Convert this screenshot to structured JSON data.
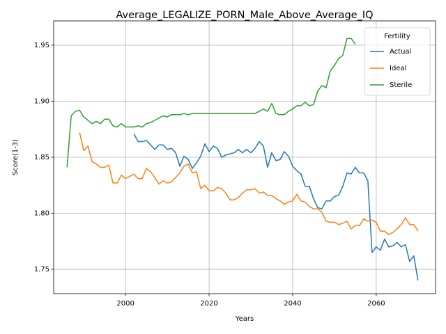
{
  "chart_data": {
    "type": "line",
    "title": "Average_LEGALIZE_PORN_Male_Above_Average_IQ",
    "xlabel": "Years",
    "ylabel": "Score(1-3)",
    "legend_title": "Fertility",
    "legend": "upper right",
    "grid": true,
    "xlim": [
      1982.8,
      2074.2
    ],
    "xticks": [
      2000,
      2020,
      2040,
      2060
    ],
    "ylim": [
      1.7283,
      1.9717
    ],
    "yticks": [
      1.75,
      {
        "value": 1.8,
        "label": "1.80"
      },
      1.85,
      {
        "value": 1.9,
        "label": "1.90"
      },
      1.95
    ],
    "x": [
      1986,
      1987,
      1988,
      1989,
      1990,
      1991,
      1992,
      1993,
      1994,
      1995,
      1996,
      1997,
      1998,
      1999,
      2000,
      2001,
      2002,
      2003,
      2004,
      2005,
      2006,
      2007,
      2008,
      2009,
      2010,
      2011,
      2012,
      2013,
      2014,
      2015,
      2016,
      2017,
      2018,
      2019,
      2020,
      2021,
      2022,
      2023,
      2024,
      2025,
      2026,
      2027,
      2028,
      2029,
      2030,
      2031,
      2032,
      2033,
      2034,
      2035,
      2036,
      2037,
      2038,
      2039,
      2040,
      2041,
      2042,
      2043,
      2044,
      2045,
      2046,
      2047,
      2048,
      2049,
      2050,
      2051,
      2052,
      2053,
      2054,
      2055,
      2056,
      2057,
      2058,
      2059,
      2060,
      2061,
      2062,
      2063,
      2064,
      2065,
      2066,
      2067,
      2068,
      2069,
      2070
    ],
    "series": [
      {
        "name": "Actual",
        "color": "#1f77b4",
        "values": [
          null,
          null,
          null,
          null,
          null,
          null,
          null,
          null,
          null,
          null,
          null,
          null,
          null,
          null,
          null,
          null,
          1.871,
          1.864,
          1.864,
          1.865,
          1.861,
          1.857,
          1.861,
          1.861,
          1.857,
          1.858,
          1.854,
          1.842,
          1.851,
          1.848,
          1.84,
          1.845,
          1.851,
          1.862,
          1.855,
          1.86,
          1.858,
          1.85,
          1.852,
          1.853,
          1.854,
          1.857,
          1.854,
          1.857,
          1.854,
          1.858,
          1.864,
          1.86,
          1.841,
          1.854,
          1.847,
          1.848,
          1.855,
          1.851,
          1.842,
          1.838,
          1.835,
          1.824,
          1.824,
          1.813,
          1.805,
          1.804,
          1.811,
          1.811,
          1.815,
          1.816,
          1.824,
          1.836,
          1.835,
          1.841,
          1.836,
          1.836,
          1.829,
          1.765,
          1.77,
          1.767,
          1.777,
          1.77,
          1.771,
          1.774,
          1.77,
          1.772,
          1.757,
          1.762,
          1.74
        ]
      },
      {
        "name": "Ideal",
        "color": "#ff7f0e",
        "values": [
          null,
          null,
          null,
          1.872,
          1.856,
          1.86,
          1.846,
          1.844,
          1.841,
          1.841,
          1.843,
          1.827,
          1.827,
          1.834,
          1.831,
          1.833,
          1.835,
          1.831,
          1.831,
          1.84,
          1.837,
          1.832,
          1.826,
          1.829,
          1.827,
          1.828,
          1.832,
          1.836,
          1.842,
          1.844,
          1.836,
          1.837,
          1.822,
          1.825,
          1.82,
          1.82,
          1.823,
          1.822,
          1.818,
          1.812,
          1.812,
          1.814,
          1.818,
          1.821,
          1.821,
          1.822,
          1.818,
          1.819,
          1.816,
          1.816,
          1.813,
          1.811,
          1.808,
          1.81,
          1.811,
          1.817,
          1.811,
          1.81,
          1.806,
          1.804,
          1.804,
          1.801,
          1.793,
          1.792,
          1.792,
          1.79,
          1.791,
          1.793,
          1.786,
          1.789,
          1.789,
          1.795,
          1.793,
          1.794,
          1.792,
          1.784,
          1.784,
          1.781,
          1.783,
          1.786,
          1.79,
          1.796,
          1.79,
          1.79,
          1.784
        ]
      },
      {
        "name": "Sterile",
        "color": "#2ca02c",
        "values": [
          1.841,
          1.887,
          1.891,
          1.892,
          1.886,
          1.883,
          1.88,
          1.882,
          1.88,
          1.884,
          1.884,
          1.878,
          1.877,
          1.88,
          1.877,
          1.877,
          1.877,
          1.878,
          1.877,
          1.88,
          1.881,
          1.883,
          1.885,
          1.887,
          1.886,
          1.888,
          1.888,
          1.888,
          1.889,
          1.888,
          1.889,
          1.889,
          1.889,
          1.889,
          1.889,
          1.889,
          1.889,
          1.889,
          1.889,
          1.889,
          1.889,
          1.889,
          1.889,
          1.889,
          1.889,
          1.889,
          1.891,
          1.893,
          1.891,
          1.898,
          1.889,
          1.888,
          1.888,
          1.891,
          1.893,
          1.896,
          1.896,
          1.899,
          1.896,
          1.897,
          1.909,
          1.914,
          1.912,
          1.927,
          1.932,
          1.938,
          1.941,
          1.956,
          1.956,
          1.951,
          null,
          null,
          null,
          null,
          null,
          null,
          null,
          null,
          null,
          null,
          null,
          null,
          null,
          null,
          null
        ]
      }
    ]
  }
}
